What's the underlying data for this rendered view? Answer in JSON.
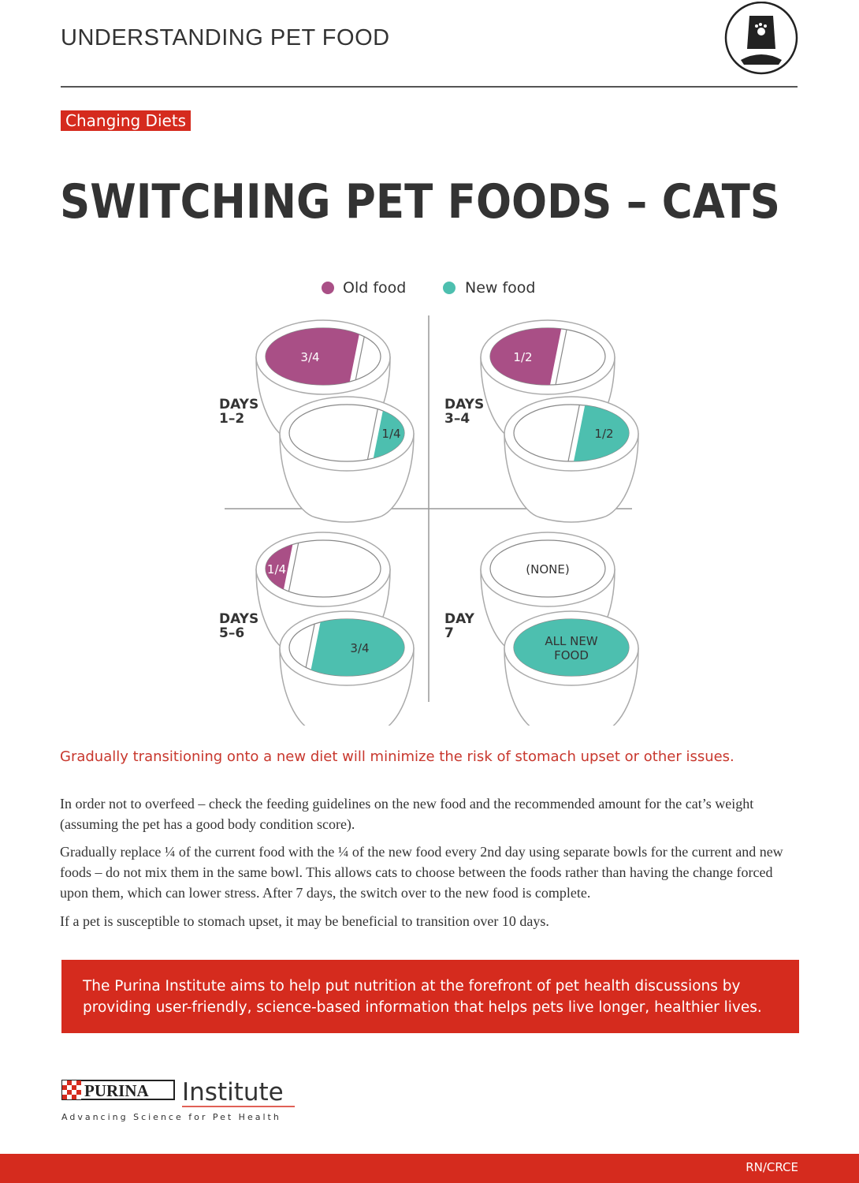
{
  "header": {
    "title": "UNDERSTANDING PET FOOD"
  },
  "tag": "Changing Diets",
  "title": "SWITCHING PET FOODS – CATS",
  "legend": [
    "Old food",
    "New food"
  ],
  "stages": [
    {
      "label": [
        "DAYS",
        "1–2"
      ],
      "old": [
        "3/4"
      ],
      "new": [
        "1/4"
      ]
    },
    {
      "label": [
        "DAYS",
        "3–4"
      ],
      "old": [
        "1/2"
      ],
      "new": [
        "1/2"
      ]
    },
    {
      "label": [
        "DAYS",
        "5–6"
      ],
      "old": [
        "1/4"
      ],
      "new": [
        "3/4"
      ]
    },
    {
      "label": [
        "DAY",
        "7"
      ],
      "old": [
        "(NONE)"
      ],
      "new": [
        "ALL NEW",
        "FOOD"
      ]
    }
  ],
  "highlight": "Gradually transitioning onto a new diet will minimize the risk of stomach upset or other issues.",
  "paragraphs": [
    "In order not to overfeed – check the feeding guidelines on the new food and the recommended amount for the cat’s weight (assuming the pet has a good body condition score).",
    "Gradually replace ¼ of the current food with the ¼ of the new food every 2nd day using separate bowls for the current and new foods – do not mix them in the same bowl. This allows cats to choose between the foods rather than having the change forced upon them, which can lower stress. After 7 days, the switch over to the new food is complete.",
    "If a pet is susceptible to stomach upset, it may be beneficial to transition over 10 days."
  ],
  "banner": "The Purina Institute aims to help put nutrition at the forefront of pet health discussions by providing user-friendly, science-based information that helps pets live longer, healthier lives.",
  "logo": {
    "brand": "PURINA",
    "name": "Institute",
    "tagline": "Advancing Science for Pet Health"
  },
  "footer": "RN/CRCE"
}
